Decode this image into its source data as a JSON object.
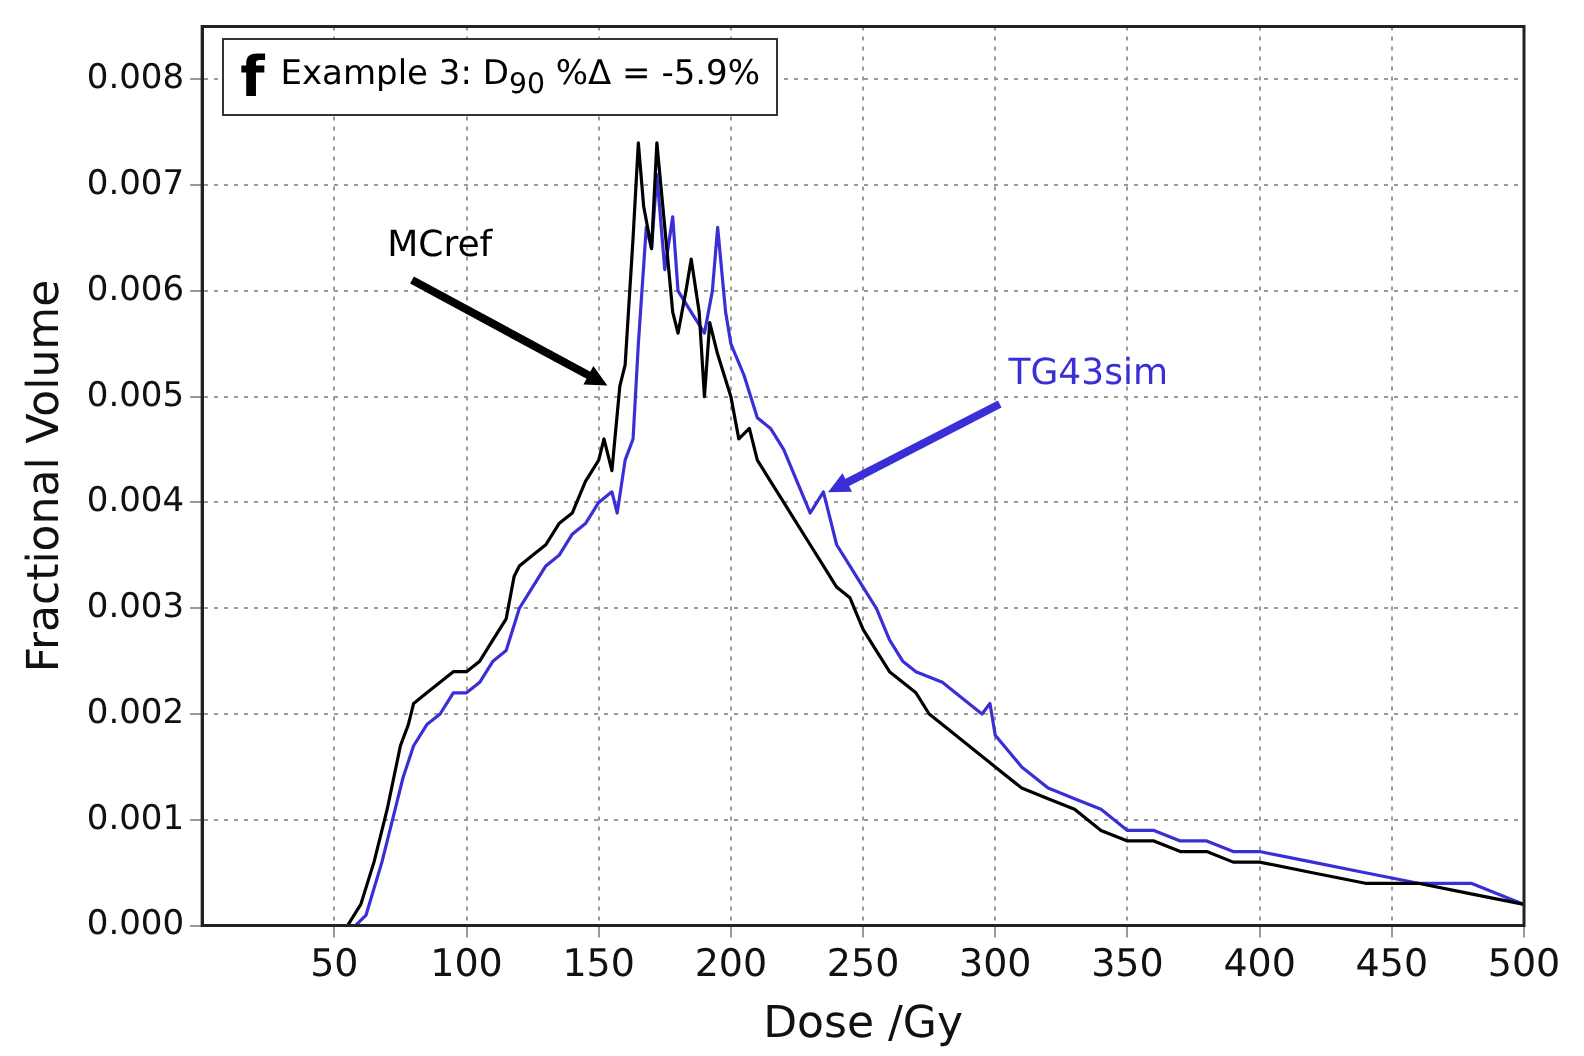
{
  "chart_data": {
    "type": "line",
    "title": "Example 3: D$_{90}$ %Δ = -5.9%",
    "annotations": [
      "f"
    ],
    "xlabel": "Dose /Gy",
    "ylabel": "Fractional Volume",
    "xlim": [
      0,
      500
    ],
    "xticks": [
      50,
      100,
      150,
      200,
      250,
      300,
      350,
      400,
      450,
      500
    ],
    "ylim": [
      0,
      0.0085
    ],
    "yticks": [
      {
        "value": 0,
        "label": "0.000"
      },
      {
        "value": 0.001,
        "label": "0.001"
      },
      {
        "value": 0.002,
        "label": "0.002"
      },
      {
        "value": 0.003,
        "label": "0.003"
      },
      {
        "value": 0.004,
        "label": "0.004"
      },
      {
        "value": 0.005,
        "label": "0.005"
      },
      {
        "value": 0.006,
        "label": "0.006"
      },
      {
        "value": 0.007,
        "label": "0.007"
      },
      {
        "value": 0.008,
        "label": "0.008"
      }
    ],
    "grid": true,
    "legend": false,
    "marker": "none",
    "line_style": "solid",
    "series": [
      {
        "name": "MCref",
        "color": "#000000",
        "x": [
          55,
          60,
          65,
          70,
          75,
          78,
          80,
          85,
          90,
          95,
          100,
          105,
          110,
          115,
          118,
          120,
          125,
          130,
          135,
          140,
          145,
          150,
          152,
          155,
          158,
          160,
          163,
          165,
          167,
          170,
          172,
          175,
          178,
          180,
          183,
          185,
          188,
          190,
          192,
          195,
          200,
          203,
          207,
          210,
          215,
          220,
          225,
          230,
          235,
          240,
          245,
          250,
          255,
          260,
          265,
          270,
          275,
          280,
          290,
          300,
          310,
          320,
          330,
          340,
          350,
          360,
          370,
          380,
          390,
          400,
          420,
          440,
          460,
          480,
          500
        ],
        "values": [
          0,
          0.0002,
          0.0006,
          0.0011,
          0.0017,
          0.0019,
          0.0021,
          0.0022,
          0.0023,
          0.0024,
          0.0024,
          0.0025,
          0.0027,
          0.0029,
          0.0033,
          0.0034,
          0.0035,
          0.0036,
          0.0038,
          0.0039,
          0.0042,
          0.0044,
          0.0046,
          0.0043,
          0.0051,
          0.0053,
          0.0065,
          0.0074,
          0.0068,
          0.0064,
          0.0074,
          0.0066,
          0.0058,
          0.0056,
          0.006,
          0.0063,
          0.0058,
          0.005,
          0.0057,
          0.0054,
          0.005,
          0.0046,
          0.0047,
          0.0044,
          0.0042,
          0.004,
          0.0038,
          0.0036,
          0.0034,
          0.0032,
          0.0031,
          0.0028,
          0.0026,
          0.0024,
          0.0023,
          0.0022,
          0.002,
          0.0019,
          0.0017,
          0.0015,
          0.0013,
          0.0012,
          0.0011,
          0.0009,
          0.0008,
          0.0008,
          0.0007,
          0.0007,
          0.0006,
          0.0006,
          0.0005,
          0.0004,
          0.0004,
          0.0003,
          0.0002
        ]
      },
      {
        "name": "TG43sim",
        "color": "#3a2fd6",
        "x": [
          58,
          62,
          68,
          72,
          76,
          80,
          85,
          90,
          95,
          100,
          105,
          110,
          115,
          120,
          125,
          130,
          135,
          140,
          145,
          150,
          155,
          157,
          160,
          163,
          165,
          168,
          170,
          172,
          175,
          178,
          180,
          185,
          190,
          193,
          195,
          198,
          200,
          205,
          210,
          215,
          220,
          225,
          230,
          235,
          240,
          245,
          250,
          255,
          260,
          265,
          270,
          280,
          290,
          295,
          298,
          300,
          310,
          320,
          330,
          340,
          350,
          360,
          370,
          380,
          390,
          400,
          420,
          440,
          460,
          480,
          500
        ],
        "values": [
          0,
          0.0001,
          0.0006,
          0.001,
          0.0014,
          0.0017,
          0.0019,
          0.002,
          0.0022,
          0.0022,
          0.0023,
          0.0025,
          0.0026,
          0.003,
          0.0032,
          0.0034,
          0.0035,
          0.0037,
          0.0038,
          0.004,
          0.0041,
          0.0039,
          0.0044,
          0.0046,
          0.0055,
          0.0066,
          0.0064,
          0.0071,
          0.0062,
          0.0067,
          0.006,
          0.0058,
          0.0056,
          0.006,
          0.0066,
          0.0058,
          0.0055,
          0.0052,
          0.0048,
          0.0047,
          0.0045,
          0.0042,
          0.0039,
          0.0041,
          0.0036,
          0.0034,
          0.0032,
          0.003,
          0.0027,
          0.0025,
          0.0024,
          0.0023,
          0.0021,
          0.002,
          0.0021,
          0.0018,
          0.0015,
          0.0013,
          0.0012,
          0.0011,
          0.0009,
          0.0009,
          0.0008,
          0.0008,
          0.0007,
          0.0007,
          0.0006,
          0.0005,
          0.0004,
          0.0004,
          0.0002
        ]
      }
    ]
  }
}
